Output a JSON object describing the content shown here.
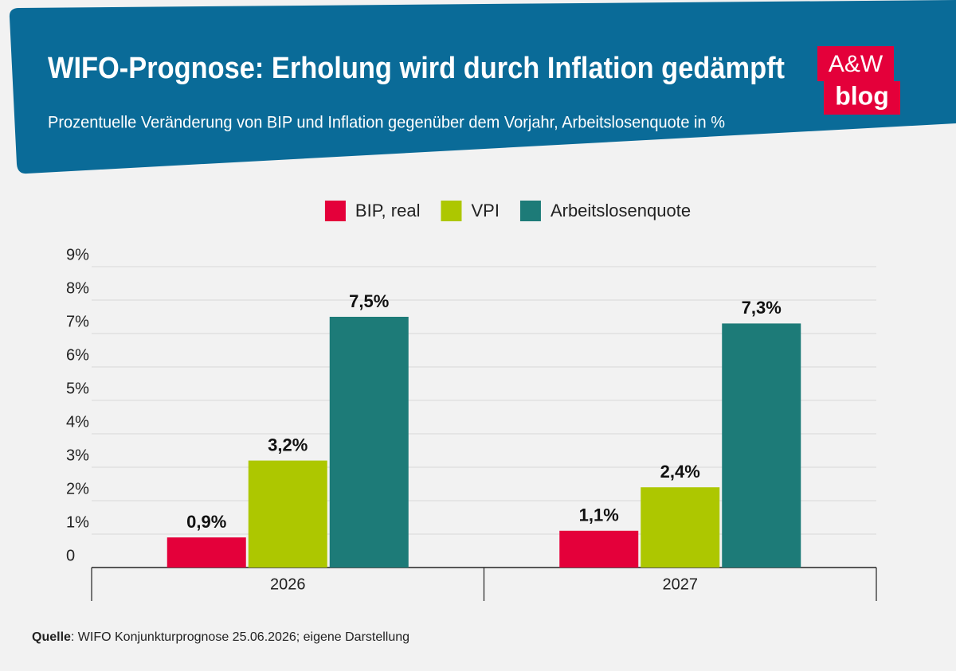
{
  "header": {
    "title": "WIFO-Prognose: Erholung wird durch Inflation gedämpft",
    "subtitle": "Prozentuelle Veränderung von BIP und Inflation gegenüber dem Vorjahr, Arbeitslosenquote in %"
  },
  "logo": {
    "top": "A&W",
    "bottom": "blog"
  },
  "chart_data": {
    "type": "bar",
    "categories": [
      "2026",
      "2027"
    ],
    "series": [
      {
        "name": "BIP, real",
        "color": "#e4003a",
        "values": [
          0.9,
          1.1
        ],
        "value_labels": [
          "0,9%",
          "1,1%"
        ]
      },
      {
        "name": "VPI",
        "color": "#adc700",
        "values": [
          3.2,
          2.4
        ],
        "value_labels": [
          "3,2%",
          "2,4%"
        ]
      },
      {
        "name": "Arbeitslosenquote",
        "color": "#1d7b78",
        "values": [
          7.5,
          7.3
        ],
        "value_labels": [
          "7,5%",
          "7,3%"
        ]
      }
    ],
    "ylim": [
      0,
      9
    ],
    "yticks": [
      0,
      {
        "value": 1,
        "label": "1%"
      },
      {
        "value": 2,
        "label": "2%"
      },
      {
        "value": 3,
        "label": "3%"
      },
      {
        "value": 4,
        "label": "4%"
      },
      {
        "value": 5,
        "label": "5%"
      },
      {
        "value": 6,
        "label": "6%"
      },
      {
        "value": 7,
        "label": "7%"
      },
      {
        "value": 8,
        "label": "8%"
      },
      {
        "value": 9,
        "label": "9%"
      }
    ],
    "grid": true,
    "legend": "top"
  },
  "source": {
    "label": "Quelle",
    "text": ": WIFO Konjunkturprognose 25.06.2026; eigene Darstellung"
  }
}
